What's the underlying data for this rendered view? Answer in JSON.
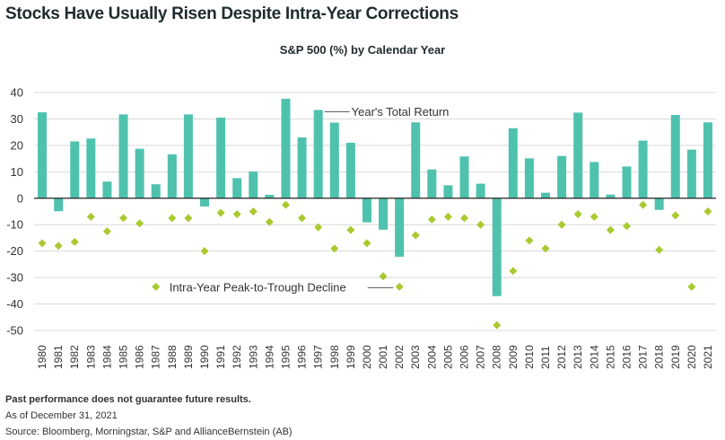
{
  "title": "Stocks Have Usually Risen Despite Intra-Year Corrections",
  "subtitle": "S&P 500 (%) by Calendar Year",
  "footer": {
    "disclaimer": "Past performance does not guarantee future results.",
    "as_of": "As of December 31, 2021",
    "source": "Source: Bloomberg, Morningstar, S&P and AllianceBernstein (AB)"
  },
  "colors": {
    "bar": "#4fc2ad",
    "diamond": "#a9c92f",
    "axis": "#222222",
    "grid": "#d9d9d9"
  },
  "chart_data": {
    "type": "bar",
    "title": "S&P 500 (%) by Calendar Year",
    "ylim": [
      -50,
      40
    ],
    "yticks": [
      40,
      30,
      20,
      10,
      0,
      -10,
      -20,
      -30,
      -40,
      -50
    ],
    "ytick_labels": [
      "40",
      "30",
      "20",
      "10",
      "0",
      "-10",
      "-20",
      "-30",
      "-40",
      "-50"
    ],
    "grid": "horizontal",
    "categories": [
      "1980",
      "1981",
      "1982",
      "1983",
      "1984",
      "1985",
      "1986",
      "1987",
      "1988",
      "1989",
      "1990",
      "1991",
      "1992",
      "1993",
      "1994",
      "1995",
      "1996",
      "1997",
      "1998",
      "1999",
      "2000",
      "2001",
      "2002",
      "2003",
      "2004",
      "2005",
      "2006",
      "2007",
      "2008",
      "2009",
      "2010",
      "2011",
      "2012",
      "2013",
      "2014",
      "2015",
      "2016",
      "2017",
      "2018",
      "2019",
      "2020",
      "2021"
    ],
    "series": [
      {
        "name": "Year's Total Return",
        "kind": "bar",
        "values": [
          32.5,
          -4.9,
          21.5,
          22.6,
          6.3,
          31.7,
          18.7,
          5.3,
          16.6,
          31.7,
          -3.1,
          30.5,
          7.6,
          10.1,
          1.3,
          37.6,
          23.0,
          33.4,
          28.6,
          21.0,
          -9.1,
          -11.9,
          -22.1,
          28.7,
          10.9,
          4.9,
          15.8,
          5.5,
          -37.0,
          26.5,
          15.1,
          2.1,
          16.0,
          32.4,
          13.7,
          1.4,
          12.0,
          21.8,
          -4.4,
          31.5,
          18.4,
          28.7
        ]
      },
      {
        "name": "Intra-Year Peak-to-Trough Decline",
        "kind": "diamond",
        "values": [
          -17,
          -18,
          -16.5,
          -7,
          -12.5,
          -7.5,
          -9.5,
          -33.5,
          -7.5,
          -7.5,
          -20,
          -5.5,
          -6,
          -5,
          -9,
          -2.5,
          -7.5,
          -11,
          -19,
          -12,
          -17,
          -29.5,
          -33.5,
          -14,
          -8,
          -7,
          -7.5,
          -10,
          -48,
          -27.5,
          -16,
          -19,
          -10,
          -6,
          -7,
          -12,
          -10.5,
          -2.5,
          -19.5,
          -6.5,
          -33.5,
          -5
        ]
      }
    ],
    "annotations": [
      {
        "text": "Year's Total Return",
        "series": "Year's Total Return"
      },
      {
        "text": "Intra-Year Peak-to-Trough Decline",
        "series": "Intra-Year Peak-to-Trough Decline"
      }
    ]
  }
}
